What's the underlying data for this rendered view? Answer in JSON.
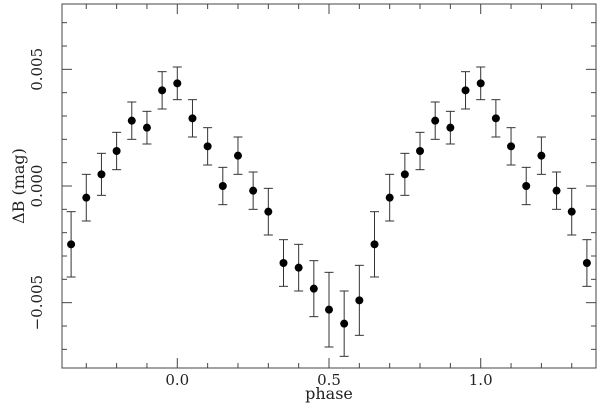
{
  "chart_data": {
    "type": "scatter",
    "xlabel": "phase",
    "ylabel": "ΔB (mag)",
    "xlim": [
      -0.38,
      1.38
    ],
    "ylim": [
      0.0078,
      -0.0078
    ],
    "y_inverted": true,
    "x_ticks": [
      {
        "value": 0.0,
        "label": "0.0"
      },
      {
        "value": 0.5,
        "label": "0.5"
      },
      {
        "value": 1.0,
        "label": "1.0"
      }
    ],
    "y_ticks": [
      {
        "value": -0.005,
        "label": "−0.005"
      },
      {
        "value": 0.0,
        "label": "0.000"
      },
      {
        "value": 0.005,
        "label": "0.005"
      }
    ],
    "grid": false,
    "marker_color": "#000000",
    "errorbar_color": "#333333",
    "series": [
      {
        "points": [
          {
            "x": -0.35,
            "y": -0.0025,
            "err": 0.0014
          },
          {
            "x": -0.3,
            "y": -0.0005,
            "err": 0.001
          },
          {
            "x": -0.25,
            "y": 0.0005,
            "err": 0.0009
          },
          {
            "x": -0.2,
            "y": 0.0015,
            "err": 0.0008
          },
          {
            "x": -0.15,
            "y": 0.0028,
            "err": 0.0008
          },
          {
            "x": -0.1,
            "y": 0.0025,
            "err": 0.0007
          },
          {
            "x": -0.05,
            "y": 0.0041,
            "err": 0.0008
          },
          {
            "x": 0.0,
            "y": 0.0044,
            "err": 0.0007
          },
          {
            "x": 0.05,
            "y": 0.0029,
            "err": 0.0008
          },
          {
            "x": 0.1,
            "y": 0.0017,
            "err": 0.0008
          },
          {
            "x": 0.15,
            "y": 0.0,
            "err": 0.0008
          },
          {
            "x": 0.2,
            "y": 0.0013,
            "err": 0.0008
          },
          {
            "x": 0.25,
            "y": -0.0002,
            "err": 0.0008
          },
          {
            "x": 0.3,
            "y": -0.0011,
            "err": 0.001
          },
          {
            "x": 0.35,
            "y": -0.0033,
            "err": 0.001
          },
          {
            "x": 0.4,
            "y": -0.0035,
            "err": 0.001
          },
          {
            "x": 0.45,
            "y": -0.0044,
            "err": 0.0012
          },
          {
            "x": 0.5,
            "y": -0.0053,
            "err": 0.0016
          },
          {
            "x": 0.55,
            "y": -0.0059,
            "err": 0.0014
          },
          {
            "x": 0.6,
            "y": -0.0049,
            "err": 0.0015
          },
          {
            "x": 0.65,
            "y": -0.0025,
            "err": 0.0014
          },
          {
            "x": 0.7,
            "y": -0.0005,
            "err": 0.001
          },
          {
            "x": 0.75,
            "y": 0.0005,
            "err": 0.0009
          },
          {
            "x": 0.8,
            "y": 0.0015,
            "err": 0.0008
          },
          {
            "x": 0.85,
            "y": 0.0028,
            "err": 0.0008
          },
          {
            "x": 0.9,
            "y": 0.0025,
            "err": 0.0007
          },
          {
            "x": 0.95,
            "y": 0.0041,
            "err": 0.0008
          },
          {
            "x": 1.0,
            "y": 0.0044,
            "err": 0.0007
          },
          {
            "x": 1.05,
            "y": 0.0029,
            "err": 0.0008
          },
          {
            "x": 1.1,
            "y": 0.0017,
            "err": 0.0008
          },
          {
            "x": 1.15,
            "y": 0.0,
            "err": 0.0008
          },
          {
            "x": 1.2,
            "y": 0.0013,
            "err": 0.0008
          },
          {
            "x": 1.25,
            "y": -0.0002,
            "err": 0.0008
          },
          {
            "x": 1.3,
            "y": -0.0011,
            "err": 0.001
          },
          {
            "x": 1.35,
            "y": -0.0033,
            "err": 0.001
          }
        ]
      }
    ]
  }
}
